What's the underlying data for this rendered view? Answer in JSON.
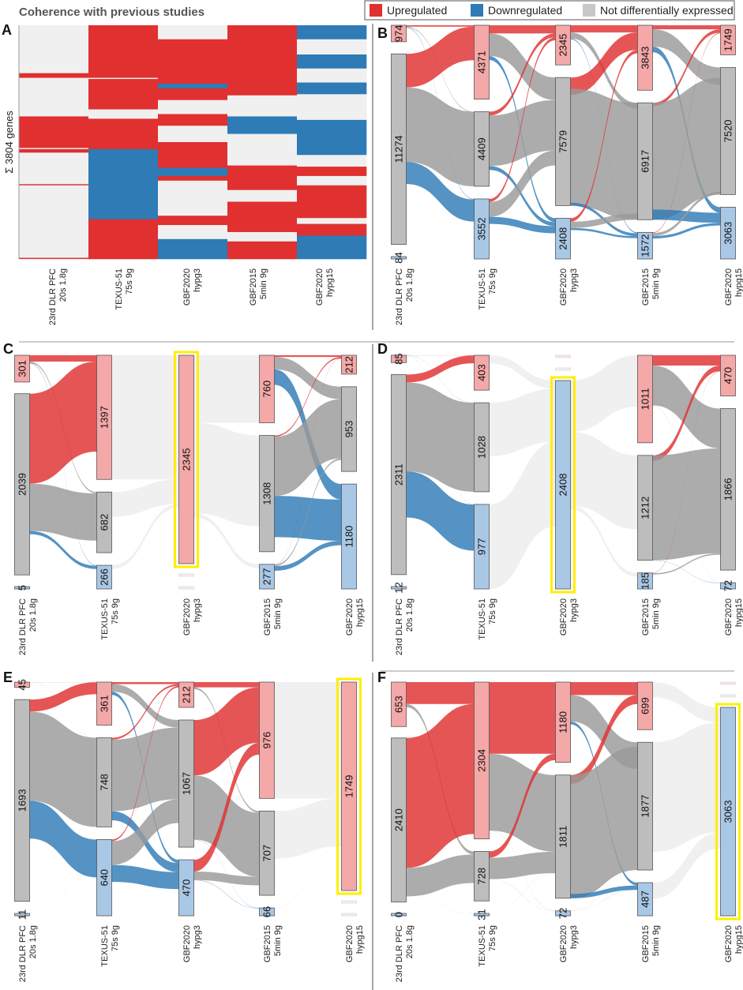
{
  "figure_title": "Coherence with previous studies",
  "legend": {
    "items": [
      {
        "label": "Upregulated",
        "color": "#e03030"
      },
      {
        "label": "Downregulated",
        "color": "#2e7bb6"
      },
      {
        "label": "Not differentially expressed",
        "color": "#c8c8c8"
      }
    ]
  },
  "colors": {
    "up": "#e03030",
    "down": "#2e7bb6",
    "none": "#9a9a9a",
    "up_node": "#f4a8a8",
    "down_node": "#a9c8e6",
    "none_node": "#bdbdbd",
    "highlight": "#ffee00",
    "heat_none": "#f0f0f0"
  },
  "columns": [
    {
      "line1": "23rd DLR PFC",
      "line2": "20s 1.8g"
    },
    {
      "line1": "TEXUS-51",
      "line2": "75s 9g"
    },
    {
      "line1": "GBF2020",
      "line2": "hypg3"
    },
    {
      "line1": "GBF2015",
      "line2": "5min 9g"
    },
    {
      "line1": "GBF2020",
      "line2": "hypg15"
    }
  ],
  "chart_data": [
    {
      "panel": "A",
      "type": "heatmap",
      "ylabel": "Σ 3804 genes",
      "columns": [
        "23rd DLR PFC 20s 1.8g",
        "TEXUS-51 75s 9g",
        "GBF2020 hypg3",
        "GBF2015 5min 9g",
        "GBF2020 hypg15"
      ],
      "segments": [
        [
          [
            "n",
            0.205
          ],
          [
            "u",
            0.02
          ],
          [
            "n",
            0.165
          ],
          [
            "u",
            0.135
          ],
          [
            "n",
            0.005
          ],
          [
            "u",
            0.015
          ],
          [
            "n",
            0.135
          ],
          [
            "u",
            0.005
          ],
          [
            "n",
            0.31
          ],
          [
            "u",
            0.005
          ],
          [
            "n",
            0.005
          ]
        ],
        [
          [
            "u",
            0.225
          ],
          [
            "n",
            0.005
          ],
          [
            "u",
            0.13
          ],
          [
            "n",
            0.04
          ],
          [
            "u",
            0.13
          ],
          [
            "d",
            0.3
          ],
          [
            "u",
            0.17
          ]
        ],
        [
          [
            "n",
            0.06
          ],
          [
            "u",
            0.19
          ],
          [
            "d",
            0.02
          ],
          [
            "u",
            0.05
          ],
          [
            "n",
            0.06
          ],
          [
            "u",
            0.05
          ],
          [
            "n",
            0.07
          ],
          [
            "u",
            0.11
          ],
          [
            "d",
            0.035
          ],
          [
            "u",
            0.02
          ],
          [
            "n",
            0.15
          ],
          [
            "u",
            0.04
          ],
          [
            "n",
            0.06
          ],
          [
            "d",
            0.085
          ]
        ],
        [
          [
            "u",
            0.3
          ],
          [
            "n",
            0.09
          ],
          [
            "d",
            0.075
          ],
          [
            "n",
            0.135
          ],
          [
            "u",
            0.105
          ],
          [
            "n",
            0.05
          ],
          [
            "u",
            0.13
          ],
          [
            "n",
            0.04
          ],
          [
            "u",
            0.075
          ]
        ],
        [
          [
            "d",
            0.06
          ],
          [
            "n",
            0.065
          ],
          [
            "d",
            0.06
          ],
          [
            "n",
            0.06
          ],
          [
            "d",
            0.05
          ],
          [
            "n",
            0.11
          ],
          [
            "d",
            0.15
          ],
          [
            "n",
            0.05
          ],
          [
            "u",
            0.04
          ],
          [
            "n",
            0.04
          ],
          [
            "u",
            0.14
          ],
          [
            "n",
            0.025
          ],
          [
            "u",
            0.05
          ],
          [
            "d",
            0.1
          ]
        ]
      ]
    },
    {
      "panel": "B",
      "type": "sankey",
      "nodes": [
        {
          "up": 974,
          "none": 11274,
          "down": 84
        },
        {
          "up": 4371,
          "none": 4409,
          "down": 3552
        },
        {
          "up": 2345,
          "none": 7579,
          "down": 2408
        },
        {
          "up": 3843,
          "none": 6917,
          "down": 1572
        },
        {
          "up": 1749,
          "none": 7520,
          "down": 3063
        }
      ],
      "highlight": null,
      "faded": []
    },
    {
      "panel": "C",
      "type": "sankey",
      "nodes": [
        {
          "up": 301,
          "none": 2039,
          "down": 5
        },
        {
          "up": 1397,
          "none": 682,
          "down": 266
        },
        {
          "up": 2345,
          "none": 0,
          "down": 0
        },
        {
          "up": 760,
          "none": 1308,
          "down": 277
        },
        {
          "up": 212,
          "none": 953,
          "down": 1180
        }
      ],
      "highlight": [
        2,
        "up"
      ],
      "faded": [
        2
      ]
    },
    {
      "panel": "D",
      "type": "sankey",
      "nodes": [
        {
          "up": 85,
          "none": 2311,
          "down": 12
        },
        {
          "up": 403,
          "none": 1028,
          "down": 977
        },
        {
          "up": 0,
          "none": 0,
          "down": 2408
        },
        {
          "up": 1011,
          "none": 1212,
          "down": 185
        },
        {
          "up": 470,
          "none": 1866,
          "down": 72
        }
      ],
      "highlight": [
        2,
        "down"
      ],
      "faded": [
        2
      ]
    },
    {
      "panel": "E",
      "type": "sankey",
      "nodes": [
        {
          "up": 45,
          "none": 1693,
          "down": 11
        },
        {
          "up": 361,
          "none": 748,
          "down": 640
        },
        {
          "up": 212,
          "none": 1067,
          "down": 470
        },
        {
          "up": 976,
          "none": 707,
          "down": 66
        },
        {
          "up": 1749,
          "none": 0,
          "down": 0
        }
      ],
      "highlight": [
        4,
        "up"
      ],
      "faded": [
        4
      ]
    },
    {
      "panel": "F",
      "type": "sankey",
      "nodes": [
        {
          "up": 653,
          "none": 2410,
          "down": 0
        },
        {
          "up": 2304,
          "none": 728,
          "down": 31
        },
        {
          "up": 1180,
          "none": 1811,
          "down": 72
        },
        {
          "up": 699,
          "none": 1877,
          "down": 487
        },
        {
          "up": 0,
          "none": 0,
          "down": 3063
        }
      ],
      "highlight": [
        4,
        "down"
      ],
      "faded": [
        4
      ]
    }
  ]
}
